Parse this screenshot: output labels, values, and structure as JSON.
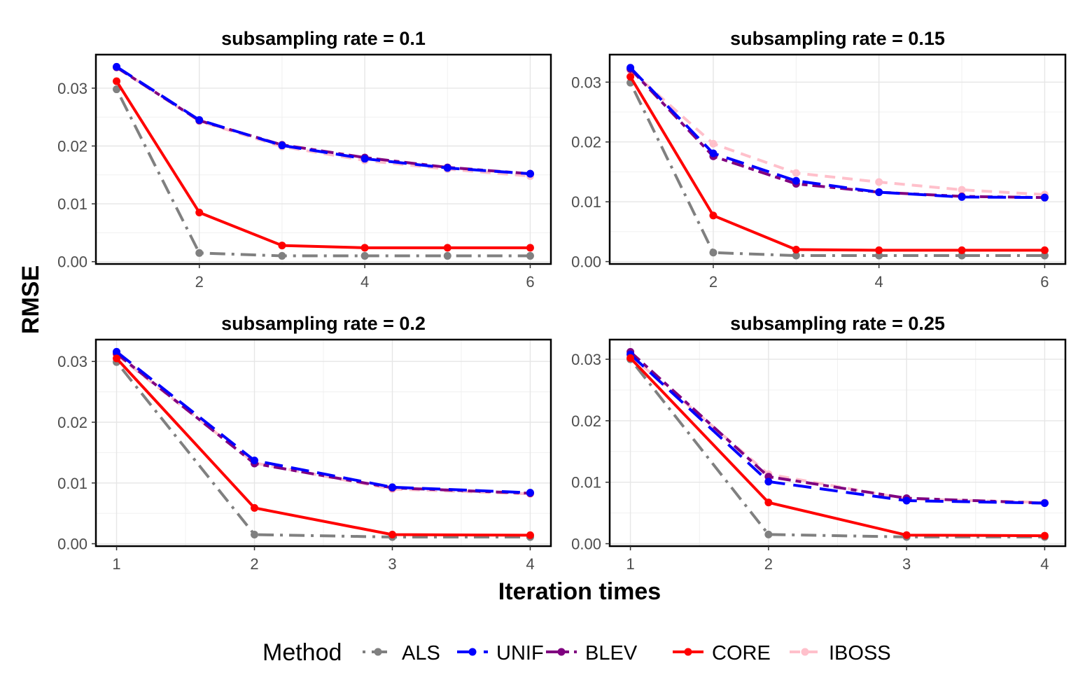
{
  "chart_data": {
    "type": "line",
    "ylabel": "RMSE",
    "xlabel": "Iteration times",
    "legend": {
      "title": "Method",
      "position": "bottom",
      "entries": [
        "ALS",
        "UNIF",
        "BLEV",
        "CORE",
        "IBOSS"
      ]
    },
    "grid": true,
    "series_styles": {
      "ALS": {
        "color": "#808080",
        "dash": "dotdash"
      },
      "UNIF": {
        "color": "#0000ff",
        "dash": "longdash"
      },
      "BLEV": {
        "color": "#800080",
        "dash": "twodash"
      },
      "CORE": {
        "color": "#ff0000",
        "dash": "solid"
      },
      "IBOSS": {
        "color": "#ffc0cb",
        "dash": "dashed"
      }
    },
    "panels": [
      {
        "title": "subsampling rate = 0.1",
        "x": [
          1,
          2,
          3,
          4,
          5,
          6
        ],
        "xticks": [
          2,
          4,
          6
        ],
        "xlim": [
          0.75,
          6.25
        ],
        "ylim": [
          -0.0004,
          0.0358
        ],
        "yticks": [
          0.0,
          0.01,
          0.02,
          0.03
        ],
        "ytick_labels": [
          "0.00",
          "0.01",
          "0.02",
          "0.03"
        ],
        "series": [
          {
            "name": "ALS",
            "values": [
              0.0298,
              0.0015,
              0.001,
              0.001,
              0.001,
              0.001
            ]
          },
          {
            "name": "IBOSS",
            "values": [
              0.0336,
              0.0243,
              0.0199,
              0.0175,
              0.016,
              0.0148
            ]
          },
          {
            "name": "BLEV",
            "values": [
              0.0336,
              0.0244,
              0.0202,
              0.018,
              0.0163,
              0.0152
            ]
          },
          {
            "name": "UNIF",
            "values": [
              0.0337,
              0.0245,
              0.0201,
              0.0178,
              0.0162,
              0.0152
            ]
          },
          {
            "name": "CORE",
            "values": [
              0.0312,
              0.0085,
              0.0028,
              0.0024,
              0.0024,
              0.0024
            ]
          }
        ]
      },
      {
        "title": "subsampling rate = 0.15",
        "x": [
          1,
          2,
          3,
          4,
          5,
          6
        ],
        "xticks": [
          2,
          4,
          6
        ],
        "xlim": [
          0.75,
          6.25
        ],
        "ylim": [
          -0.0004,
          0.0346
        ],
        "yticks": [
          0.0,
          0.01,
          0.02,
          0.03
        ],
        "ytick_labels": [
          "0.00",
          "0.01",
          "0.02",
          "0.03"
        ],
        "series": [
          {
            "name": "ALS",
            "values": [
              0.0299,
              0.0015,
              0.001,
              0.001,
              0.001,
              0.001
            ]
          },
          {
            "name": "IBOSS",
            "values": [
              0.032,
              0.0197,
              0.0148,
              0.0133,
              0.012,
              0.0112
            ]
          },
          {
            "name": "BLEV",
            "values": [
              0.0322,
              0.0176,
              0.013,
              0.0116,
              0.0109,
              0.0107
            ]
          },
          {
            "name": "UNIF",
            "values": [
              0.0324,
              0.0181,
              0.0135,
              0.0116,
              0.0108,
              0.0107
            ]
          },
          {
            "name": "CORE",
            "values": [
              0.0309,
              0.0077,
              0.002,
              0.0019,
              0.0019,
              0.0019
            ]
          }
        ]
      },
      {
        "title": "subsampling rate = 0.2",
        "x": [
          1,
          2,
          3,
          4
        ],
        "xticks": [
          1,
          2,
          3,
          4
        ],
        "xlim": [
          0.85,
          4.15
        ],
        "ylim": [
          -0.0004,
          0.0336
        ],
        "yticks": [
          0.0,
          0.01,
          0.02,
          0.03
        ],
        "ytick_labels": [
          "0.00",
          "0.01",
          "0.02",
          "0.03"
        ],
        "series": [
          {
            "name": "ALS",
            "values": [
              0.0299,
              0.0015,
              0.0011,
              0.0011
            ]
          },
          {
            "name": "IBOSS",
            "values": [
              0.0311,
              0.0133,
              0.009,
              0.0082
            ]
          },
          {
            "name": "BLEV",
            "values": [
              0.0313,
              0.0132,
              0.0092,
              0.0083
            ]
          },
          {
            "name": "UNIF",
            "values": [
              0.0316,
              0.0137,
              0.0093,
              0.0084
            ]
          },
          {
            "name": "CORE",
            "values": [
              0.0305,
              0.0059,
              0.0015,
              0.0014
            ]
          }
        ]
      },
      {
        "title": "subsampling rate = 0.25",
        "x": [
          1,
          2,
          3,
          4
        ],
        "xticks": [
          1,
          2,
          3,
          4
        ],
        "xlim": [
          0.85,
          4.15
        ],
        "ylim": [
          -0.0004,
          0.0332
        ],
        "yticks": [
          0.0,
          0.01,
          0.02,
          0.03
        ],
        "ytick_labels": [
          "0.00",
          "0.01",
          "0.02",
          "0.03"
        ],
        "series": [
          {
            "name": "ALS",
            "values": [
              0.03,
              0.0015,
              0.0011,
              0.0011
            ]
          },
          {
            "name": "IBOSS",
            "values": [
              0.0306,
              0.0113,
              0.0073,
              0.0067
            ]
          },
          {
            "name": "BLEV",
            "values": [
              0.0312,
              0.0109,
              0.0074,
              0.0066
            ]
          },
          {
            "name": "UNIF",
            "values": [
              0.0308,
              0.0101,
              0.007,
              0.0066
            ]
          },
          {
            "name": "CORE",
            "values": [
              0.0302,
              0.0067,
              0.0014,
              0.0013
            ]
          }
        ]
      }
    ]
  }
}
